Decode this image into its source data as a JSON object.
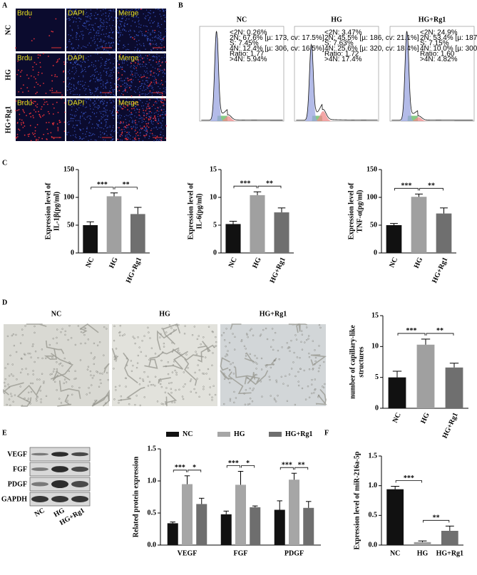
{
  "panel_labels": [
    "A",
    "B",
    "C",
    "D",
    "E",
    "F"
  ],
  "panel_a": {
    "rows": [
      "NC",
      "HG",
      "HG+Rg1"
    ],
    "columns": [
      "Brdu",
      "DAPI",
      "Merge"
    ]
  },
  "panel_b": {
    "samples": [
      {
        "title": "NC",
        "stats": [
          "<2N: 0.26%",
          "2N: 67.6% [µ: 173, cv: 17.5%]",
          "S: 7.45%",
          "4N: 12.4% [µ: 306, cv: 16.5%]",
          "Ratio: 1.77",
          ">4N: 5.94%"
        ]
      },
      {
        "title": "HG",
        "stats": [
          "<2N: 3.47%",
          "2N: 45.5% [µ: 186, cv: 21.1%]",
          "S: 7.63%",
          "4N: 25.6% [µ: 320, cv: 18.4%]",
          "Ratio: 1.72",
          ">4N: 17.4%"
        ]
      },
      {
        "title": "HG+Rg1",
        "stats": [
          "<2N: 24.9%",
          "2N: 53.4% [µ: 187, cv: 15.9%]",
          "S: 7.15%",
          "4N: 10.0% [µ: 300, cv: 15.9%]",
          "Ratio: 1.60",
          ">4N: 4.82%"
        ]
      }
    ]
  },
  "panel_d": {
    "images": [
      "NC",
      "HG",
      "HG+Rg1"
    ]
  },
  "panel_e": {
    "proteins": [
      "VEGF",
      "FGF",
      "PDGF",
      "GAPDH"
    ],
    "lanes": [
      "NC",
      "HG",
      "HG+Rg1"
    ]
  },
  "chart_data": [
    {
      "type": "bar",
      "y_label": [
        "Expression level of",
        "IL-1β(pg/ml)"
      ],
      "categories": [
        "NC",
        "HG",
        "HG+Rg1"
      ],
      "values": [
        50,
        102,
        70
      ],
      "errors": [
        6,
        6,
        12
      ],
      "colors": [
        "#111111",
        "#a0a0a0",
        "#6f6f6f"
      ],
      "ylim": [
        0,
        150
      ],
      "yticks": [
        0,
        50,
        100,
        150
      ],
      "significance": [
        {
          "label": "***",
          "between": [
            0,
            1
          ]
        },
        {
          "label": "**",
          "between": [
            1,
            2
          ]
        }
      ]
    },
    {
      "type": "bar",
      "y_label": [
        "Expression level of",
        "IL-6(pg/ml)"
      ],
      "categories": [
        "NC",
        "HG",
        "HG+Rg1"
      ],
      "values": [
        5.2,
        10.4,
        7.3
      ],
      "errors": [
        0.5,
        0.6,
        0.8
      ],
      "colors": [
        "#111111",
        "#a0a0a0",
        "#6f6f6f"
      ],
      "ylim": [
        0,
        15
      ],
      "yticks": [
        0,
        5,
        10,
        15
      ],
      "significance": [
        {
          "label": "***",
          "between": [
            0,
            1
          ]
        },
        {
          "label": "**",
          "between": [
            1,
            2
          ]
        }
      ]
    },
    {
      "type": "bar",
      "y_label": [
        "Expression level of",
        "TNF-α(pg/ml)"
      ],
      "categories": [
        "NC",
        "HG",
        "HG+Rg1"
      ],
      "values": [
        50,
        101,
        71
      ],
      "errors": [
        3,
        5,
        10
      ],
      "colors": [
        "#111111",
        "#a0a0a0",
        "#6f6f6f"
      ],
      "ylim": [
        0,
        150
      ],
      "yticks": [
        0,
        50,
        100,
        150
      ],
      "significance": [
        {
          "label": "***",
          "between": [
            0,
            1
          ]
        },
        {
          "label": "**",
          "between": [
            1,
            2
          ]
        }
      ]
    },
    {
      "type": "bar",
      "y_label": [
        "number of capillary-like",
        "structures"
      ],
      "categories": [
        "NC",
        "HG",
        "HG+Rg1"
      ],
      "values": [
        5,
        10.3,
        6.6
      ],
      "errors": [
        1,
        0.9,
        0.7
      ],
      "colors": [
        "#111111",
        "#a0a0a0",
        "#6f6f6f"
      ],
      "ylim": [
        0,
        15
      ],
      "yticks": [
        0,
        5,
        10,
        15
      ],
      "significance": [
        {
          "label": "***",
          "between": [
            0,
            1
          ]
        },
        {
          "label": "**",
          "between": [
            1,
            2
          ]
        }
      ]
    },
    {
      "type": "grouped_bar",
      "y_label": [
        "Related protein expression"
      ],
      "categories": [
        "VEGF",
        "FGF",
        "PDGF"
      ],
      "series": [
        {
          "name": "NC",
          "color": "#111111",
          "values": [
            0.34,
            0.48,
            0.55
          ],
          "errors": [
            0.02,
            0.05,
            0.14
          ]
        },
        {
          "name": "HG",
          "color": "#a6a6a6",
          "values": [
            0.95,
            0.94,
            1.02
          ],
          "errors": [
            0.13,
            0.21,
            0.1
          ]
        },
        {
          "name": "HG+Rg1",
          "color": "#6e6e6e",
          "values": [
            0.64,
            0.59,
            0.58
          ],
          "errors": [
            0.09,
            0.02,
            0.1
          ]
        }
      ],
      "ylim": [
        0,
        1.5
      ],
      "yticks": [
        {
          "value": 0,
          "label": "0.0"
        },
        {
          "value": 0.5,
          "label": "0.5"
        },
        {
          "value": 1,
          "label": "1.0"
        },
        {
          "value": 1.5,
          "label": "1.5"
        }
      ],
      "legend": "top",
      "significance": [
        [
          {
            "label": "***",
            "between": [
              0,
              1
            ]
          },
          {
            "label": "*",
            "between": [
              1,
              2
            ]
          }
        ],
        [
          {
            "label": "***",
            "between": [
              0,
              1
            ]
          },
          {
            "label": "*",
            "between": [
              1,
              2
            ]
          }
        ],
        [
          {
            "label": "***",
            "between": [
              0,
              1
            ]
          },
          {
            "label": "**",
            "between": [
              1,
              2
            ]
          }
        ]
      ]
    },
    {
      "type": "bar",
      "y_label": [
        "Expression level of miR-216a-5p"
      ],
      "categories": [
        "NC",
        "HG",
        "HG+Rg1"
      ],
      "values": [
        0.94,
        0.05,
        0.24
      ],
      "errors": [
        0.05,
        0.02,
        0.08
      ],
      "colors": [
        "#111111",
        "#a0a0a0",
        "#6f6f6f"
      ],
      "ylim": [
        0,
        1.5
      ],
      "yticks": [
        {
          "value": 0,
          "label": "0.0"
        },
        {
          "value": 0.5,
          "label": "0.5"
        },
        {
          "value": 1,
          "label": "1.0"
        },
        {
          "value": 1.5,
          "label": "1.5"
        }
      ],
      "significance": [
        {
          "label": "***",
          "between": [
            0,
            1
          ]
        },
        {
          "label": "**",
          "between": [
            1,
            2
          ]
        }
      ]
    }
  ]
}
